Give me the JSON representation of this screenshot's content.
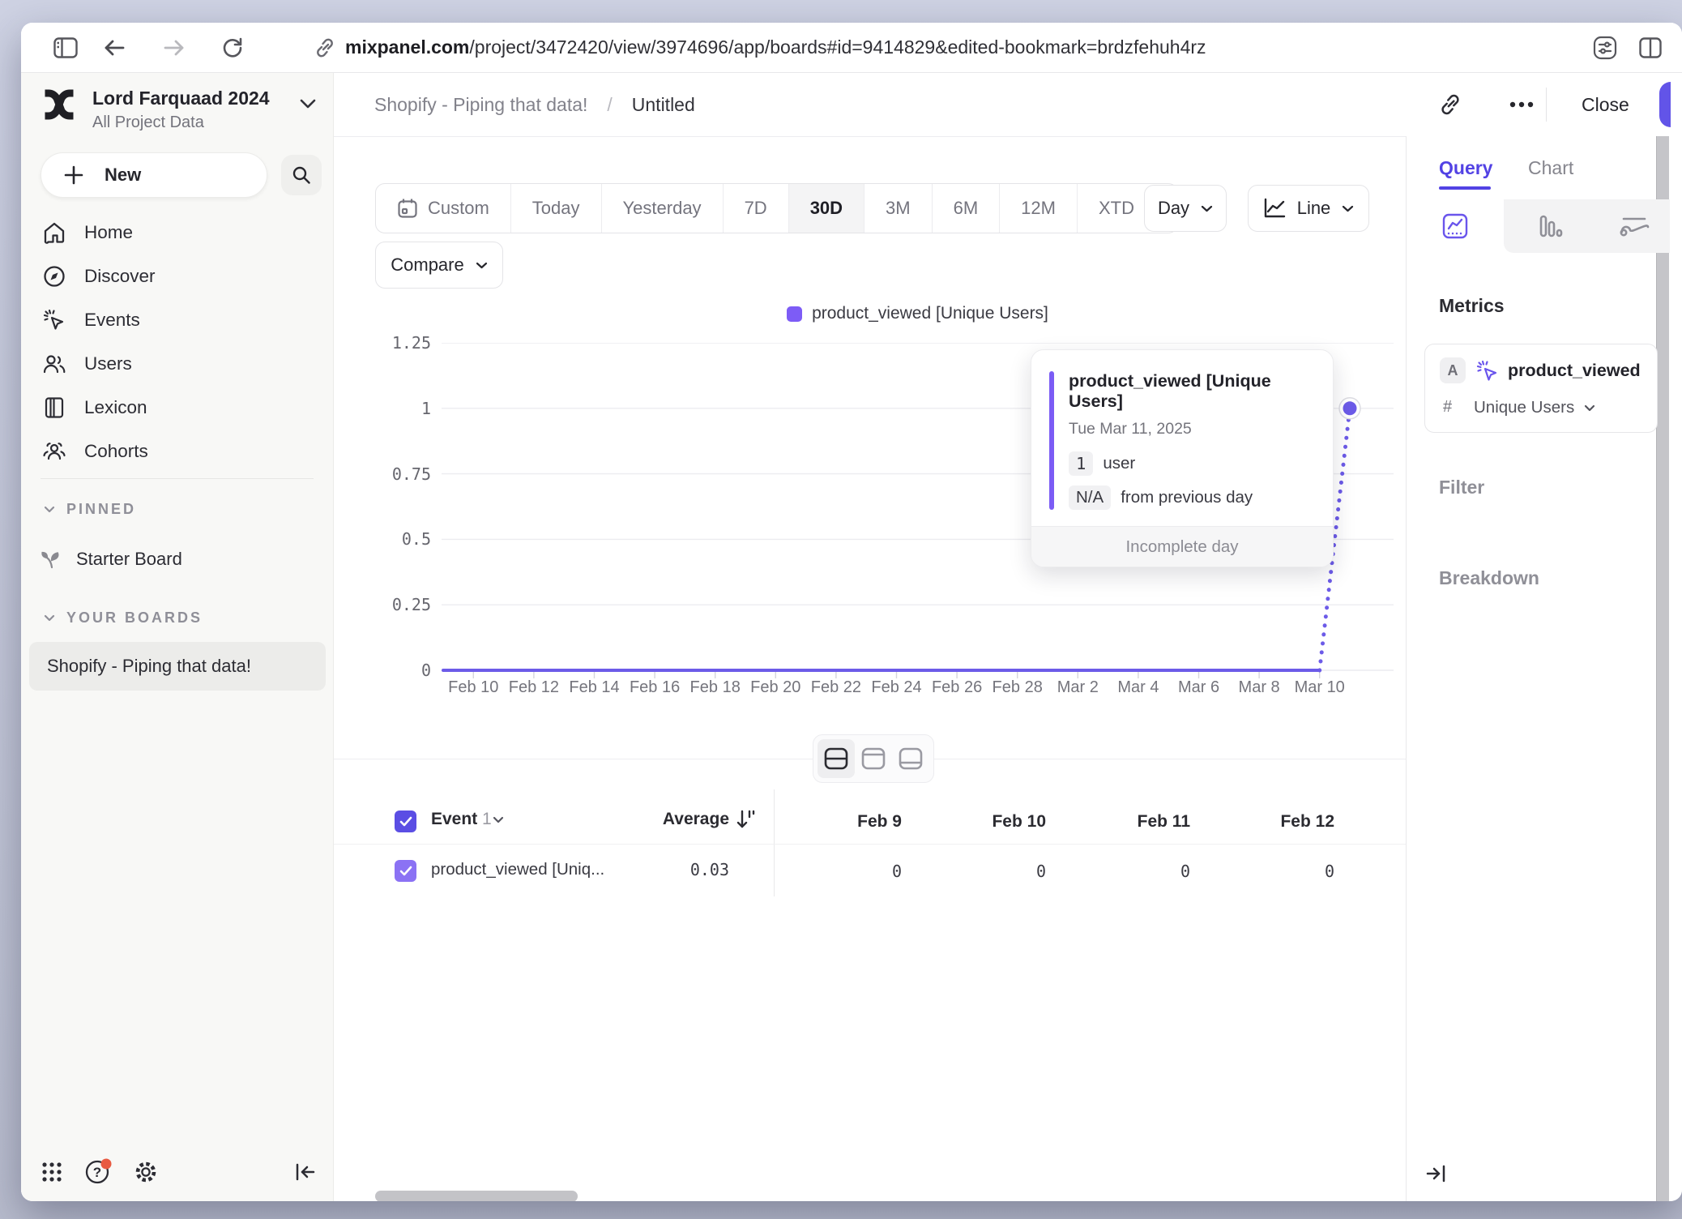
{
  "accent_color": "#6a55ec",
  "browser": {
    "url_domain": "mixpanel.com",
    "url_path": "/project/3472420/view/3974696/app/boards#id=9414829&edited-bookmark=brdzfehuh4rz"
  },
  "sidebar": {
    "workspace_name": "Lord Farquaad 2024",
    "workspace_subtitle": "All Project Data",
    "new_label": "New",
    "nav": [
      {
        "label": "Home"
      },
      {
        "label": "Discover"
      },
      {
        "label": "Events"
      },
      {
        "label": "Users"
      },
      {
        "label": "Lexicon"
      },
      {
        "label": "Cohorts"
      }
    ],
    "pinned_label": "PINNED",
    "pinned_board": "Starter Board",
    "your_boards_label": "YOUR BOARDS",
    "active_board": "Shopify - Piping that data!"
  },
  "header": {
    "breadcrumb_board": "Shopify - Piping that data!",
    "breadcrumb_sep": "/",
    "breadcrumb_page": "Untitled",
    "close_label": "Close"
  },
  "toolbar": {
    "ranges": [
      "Custom",
      "Today",
      "Yesterday",
      "7D",
      "30D",
      "3M",
      "6M",
      "12M",
      "XTD"
    ],
    "selected_range": "30D",
    "granularity": "Day",
    "chart_style": "Line",
    "compare_label": "Compare"
  },
  "chart_data": {
    "type": "line",
    "series": [
      {
        "name": "product_viewed [Unique Users]",
        "color": "#6c5be8",
        "values": [
          0,
          0,
          0,
          0,
          0,
          0,
          0,
          0,
          0,
          0,
          0,
          0,
          0,
          0,
          0,
          0,
          0,
          0,
          0,
          0,
          0,
          0,
          0,
          0,
          0,
          0,
          0,
          0,
          0,
          0,
          1
        ]
      }
    ],
    "x": [
      "Feb 9",
      "Feb 10",
      "Feb 11",
      "Feb 12",
      "Feb 13",
      "Feb 14",
      "Feb 15",
      "Feb 16",
      "Feb 17",
      "Feb 18",
      "Feb 19",
      "Feb 20",
      "Feb 21",
      "Feb 22",
      "Feb 23",
      "Feb 24",
      "Feb 25",
      "Feb 26",
      "Feb 27",
      "Feb 28",
      "Mar 1",
      "Mar 2",
      "Mar 3",
      "Mar 4",
      "Mar 5",
      "Mar 6",
      "Mar 7",
      "Mar 8",
      "Mar 9",
      "Mar 10",
      "Mar 11"
    ],
    "x_tick_labels": [
      "Feb 10",
      "Feb 12",
      "Feb 14",
      "Feb 16",
      "Feb 18",
      "Feb 20",
      "Feb 22",
      "Feb 24",
      "Feb 26",
      "Feb 28",
      "Mar 2",
      "Mar 4",
      "Mar 6",
      "Mar 8",
      "Mar 10"
    ],
    "y_ticks": [
      "1.25",
      "1",
      "0.75",
      "0.5",
      "0.25",
      "0"
    ],
    "ylim": [
      0,
      1.25
    ],
    "grid": true,
    "legend_position": "top-center",
    "incomplete_last_segment": true
  },
  "tooltip": {
    "title": "product_viewed [Unique Users]",
    "date": "Tue Mar 11, 2025",
    "value": "1",
    "value_unit": "user",
    "delta": "N/A",
    "delta_label": "from previous day",
    "footer": "Incomplete day"
  },
  "table": {
    "event_label": "Event",
    "event_count": "1",
    "average_label": "Average",
    "date_columns": [
      "Feb 9",
      "Feb 10",
      "Feb 11",
      "Feb 12"
    ],
    "rows": [
      {
        "name": "product_viewed [Uniq...",
        "average": "0.03",
        "values": [
          "0",
          "0",
          "0",
          "0"
        ]
      }
    ]
  },
  "query_panel": {
    "tab_query": "Query",
    "tab_chart": "Chart",
    "metrics_label": "Metrics",
    "metric_letter": "A",
    "metric_event": "product_viewed",
    "metric_agg_symbol": "#",
    "metric_aggregation": "Unique Users",
    "filter_label": "Filter",
    "breakdown_label": "Breakdown"
  }
}
